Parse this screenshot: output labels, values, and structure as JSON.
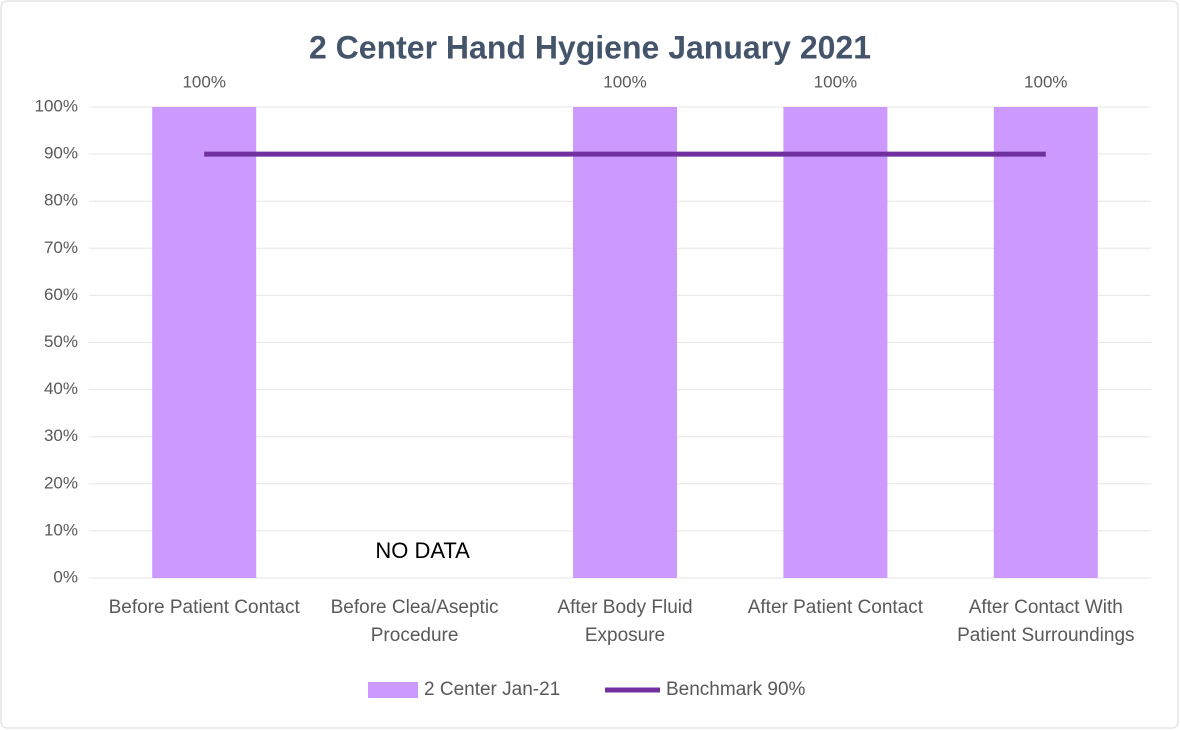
{
  "chart_data": {
    "type": "bar",
    "title": "2 Center Hand Hygiene January 2021",
    "categories": [
      "Before Patient Contact",
      "Before Clea/Aseptic Procedure",
      "After Body Fluid Exposure",
      "After Patient Contact",
      "After Contact With Patient Surroundings"
    ],
    "series": [
      {
        "name": "2 Center Jan-21",
        "color": "#cc99ff",
        "values": [
          100,
          null,
          100,
          100,
          100
        ],
        "value_labels": [
          "100%",
          null,
          "100%",
          "100%",
          "100%"
        ]
      },
      {
        "name": "Benchmark 90%",
        "color": "#7030a0",
        "type": "line",
        "values": [
          90,
          90,
          90,
          90,
          90
        ]
      }
    ],
    "annotation": "NO DATA",
    "ylim": [
      0,
      100
    ],
    "yticks": [
      {
        "value": 0,
        "label": "0%"
      },
      {
        "value": 10,
        "label": "10%"
      },
      {
        "value": 20,
        "label": "20%"
      },
      {
        "value": 30,
        "label": "30%"
      },
      {
        "value": 40,
        "label": "40%"
      },
      {
        "value": 50,
        "label": "50%"
      },
      {
        "value": 60,
        "label": "60%"
      },
      {
        "value": 70,
        "label": "70%"
      },
      {
        "value": 80,
        "label": "80%"
      },
      {
        "value": 90,
        "label": "90%"
      },
      {
        "value": 100,
        "label": "100%"
      }
    ],
    "grid": true,
    "legend": "bottom"
  }
}
